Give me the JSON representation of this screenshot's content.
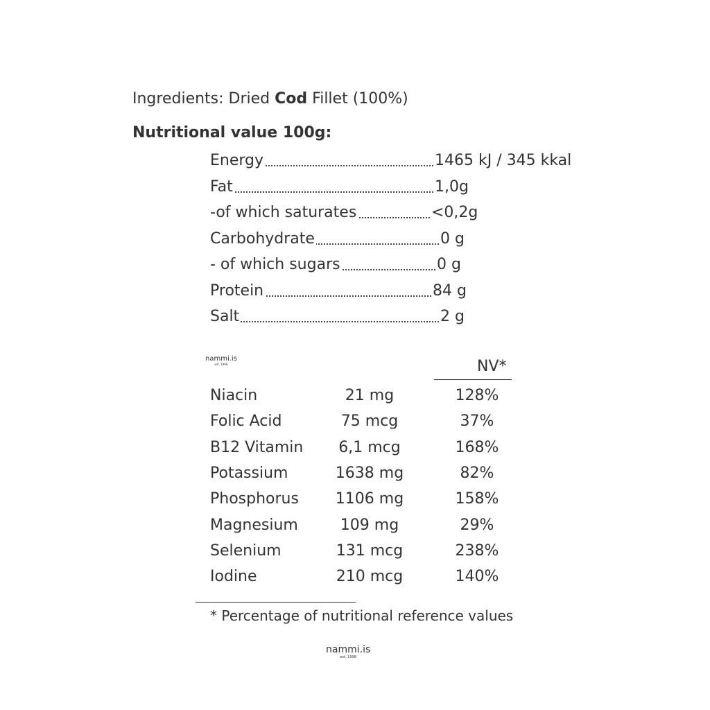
{
  "ingredients": {
    "prefix": "Ingredients: Dried ",
    "bold": "Cod",
    "suffix": " Fillet (100%)"
  },
  "nutrition_title": "Nutritional value 100g:",
  "nutrition": [
    {
      "label": "Energy",
      "value": "1465 kJ / 345 kkal"
    },
    {
      "label": "Fat",
      "value": "1,0g"
    },
    {
      "label": "-of which saturates",
      "value": "<0,2g"
    },
    {
      "label": "Carbohydrate",
      "value": "0 g"
    },
    {
      "label": "- of which sugars",
      "value": "0 g"
    },
    {
      "label": "Protein",
      "value": "84 g"
    },
    {
      "label": "Salt",
      "value": "2 g"
    }
  ],
  "logo": {
    "name": "nammi.is",
    "est": "est. 1998"
  },
  "nv_header": "NV*",
  "vitamins": [
    {
      "name": "Niacin",
      "amount": "21 mg",
      "nv": "128%"
    },
    {
      "name": "Folic Acid",
      "amount": "75 mcg",
      "nv": "37%"
    },
    {
      "name": "B12 Vitamin",
      "amount": "6,1 mcg",
      "nv": "168%"
    },
    {
      "name": "Potassium",
      "amount": "1638 mg",
      "nv": "82%"
    },
    {
      "name": "Phosphorus",
      "amount": "1106 mg",
      "nv": "158%"
    },
    {
      "name": "Magnesium",
      "amount": "109 mg",
      "nv": "29%"
    },
    {
      "name": "Selenium",
      "amount": "131 mcg",
      "nv": "238%"
    },
    {
      "name": "Iodine",
      "amount": "210 mcg",
      "nv": "140%"
    }
  ],
  "footnote": "* Percentage of nutritional reference values"
}
